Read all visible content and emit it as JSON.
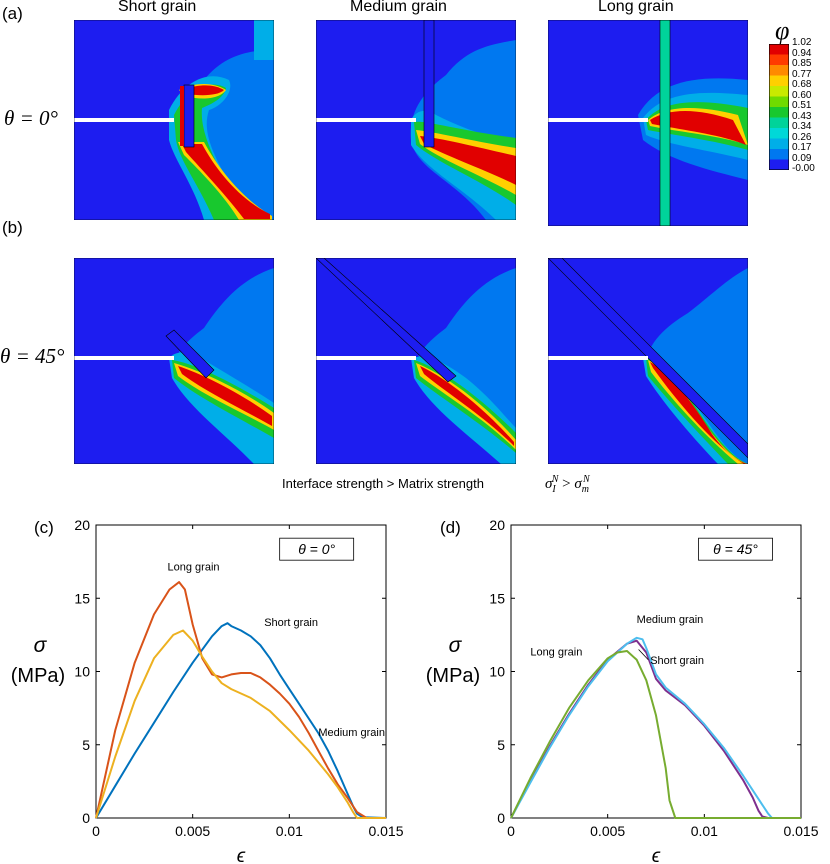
{
  "figure": {
    "panel_a_label": "(a)",
    "panel_b_label": "(b)",
    "panel_c_label": "(c)",
    "panel_d_label": "(d)",
    "column_titles": [
      "Short grain",
      "Medium grain",
      "Long grain"
    ],
    "row_a_angle": "θ = 0°",
    "row_b_angle": "θ = 45°",
    "colorbar": {
      "symbol": "φ",
      "ticks": [
        "1.02",
        "0.94",
        "0.85",
        "0.77",
        "0.68",
        "0.60",
        "0.51",
        "0.43",
        "0.34",
        "0.26",
        "0.17",
        "0.09",
        "-0.00"
      ],
      "colors": [
        "#e10000",
        "#ff3b00",
        "#ff8a00",
        "#ffd000",
        "#c8ea00",
        "#6fdb00",
        "#18c82e",
        "#00d39a",
        "#00d8d8",
        "#00aee8",
        "#0078f0",
        "#1d1df0"
      ]
    },
    "caption_left": "Interface strength > Matrix strength",
    "caption_right_sigma": "σ",
    "caption_right_I": "I",
    "caption_right_N1": "N",
    "caption_right_gt": ">",
    "caption_right_m": "m",
    "caption_right_N2": "N"
  },
  "chart_data": [
    {
      "type": "line",
      "panel": "(c)",
      "legend_box": "θ = 0°",
      "xlabel": "ϵ",
      "ylabel_symbol": "σ",
      "ylabel_unit": "(MPa)",
      "xlim": [
        0,
        0.015
      ],
      "ylim": [
        0,
        20
      ],
      "xticks": [
        0,
        0.005,
        0.01,
        0.015
      ],
      "xtick_labels": [
        "0",
        "0.005",
        "0.01",
        "0.015"
      ],
      "yticks": [
        0,
        5,
        10,
        15,
        20
      ],
      "ytick_labels": [
        "0",
        "5",
        "10",
        "15",
        "20"
      ],
      "annotations": [
        "Long grain",
        "Short grain",
        "Medium grain"
      ],
      "series": [
        {
          "name": "Short grain",
          "color": "#0072bd",
          "x": [
            0,
            0.001,
            0.002,
            0.003,
            0.004,
            0.005,
            0.006,
            0.0065,
            0.0068,
            0.007,
            0.0075,
            0.008,
            0.0085,
            0.009,
            0.0095,
            0.01,
            0.0105,
            0.011,
            0.0115,
            0.012,
            0.0125,
            0.013,
            0.0133,
            0.0135,
            0.0138,
            0.015
          ],
          "y": [
            0,
            2.2,
            4.4,
            6.5,
            8.6,
            10.6,
            12.4,
            13.1,
            13.3,
            13.1,
            12.8,
            12.4,
            11.8,
            10.9,
            9.8,
            8.8,
            7.8,
            6.8,
            5.8,
            4.6,
            3.2,
            1.7,
            0.8,
            0.3,
            0.05,
            0
          ]
        },
        {
          "name": "Long grain",
          "color": "#d95319",
          "x": [
            0,
            0.001,
            0.002,
            0.003,
            0.0038,
            0.0043,
            0.0046,
            0.005,
            0.0055,
            0.006,
            0.0065,
            0.007,
            0.0075,
            0.008,
            0.0085,
            0.009,
            0.0095,
            0.01,
            0.0105,
            0.011,
            0.0115,
            0.012,
            0.0125,
            0.013,
            0.0135,
            0.014,
            0.015
          ],
          "y": [
            0,
            6.0,
            10.6,
            13.9,
            15.6,
            16.1,
            15.6,
            13.2,
            10.9,
            9.8,
            9.6,
            9.8,
            9.9,
            9.9,
            9.6,
            9.1,
            8.5,
            7.8,
            6.9,
            5.8,
            4.6,
            3.4,
            2.3,
            1.4,
            0.4,
            0,
            0
          ]
        },
        {
          "name": "Medium grain",
          "color": "#edb120",
          "x": [
            0,
            0.001,
            0.002,
            0.003,
            0.004,
            0.0045,
            0.005,
            0.0055,
            0.006,
            0.0065,
            0.007,
            0.008,
            0.009,
            0.01,
            0.011,
            0.012,
            0.0125,
            0.013,
            0.0133,
            0.0135,
            0.015
          ],
          "y": [
            0,
            4.2,
            8.0,
            10.9,
            12.5,
            12.8,
            12.1,
            11.0,
            10.0,
            9.2,
            8.8,
            8.2,
            7.3,
            6.0,
            4.6,
            3.0,
            2.1,
            1.1,
            0.4,
            0,
            0
          ]
        }
      ]
    },
    {
      "type": "line",
      "panel": "(d)",
      "legend_box": "θ = 45°",
      "xlabel": "ϵ",
      "ylabel_symbol": "σ",
      "ylabel_unit": "(MPa)",
      "xlim": [
        0,
        0.015
      ],
      "ylim": [
        0,
        20
      ],
      "xticks": [
        0,
        0.005,
        0.01,
        0.015
      ],
      "xtick_labels": [
        "0",
        "0.005",
        "0.01",
        "0.015"
      ],
      "yticks": [
        0,
        5,
        10,
        15,
        20
      ],
      "ytick_labels": [
        "0",
        "5",
        "10",
        "15",
        "20"
      ],
      "annotations": [
        "Medium grain",
        "Long grain",
        "Short grain"
      ],
      "series": [
        {
          "name": "Medium grain",
          "color": "#7e2f8e",
          "x": [
            0,
            0.001,
            0.002,
            0.003,
            0.004,
            0.005,
            0.006,
            0.0065,
            0.007,
            0.0075,
            0.008,
            0.009,
            0.01,
            0.011,
            0.012,
            0.0125,
            0.0128,
            0.013,
            0.0133,
            0.015
          ],
          "y": [
            0,
            2.5,
            4.9,
            7.1,
            9.1,
            10.8,
            11.9,
            12.1,
            11.3,
            9.5,
            8.7,
            7.7,
            6.3,
            4.6,
            2.6,
            1.4,
            0.5,
            0.1,
            0,
            0
          ]
        },
        {
          "name": "Short grain",
          "color": "#4dbeee",
          "x": [
            0,
            0.001,
            0.002,
            0.003,
            0.004,
            0.005,
            0.006,
            0.0065,
            0.0068,
            0.007,
            0.0075,
            0.008,
            0.009,
            0.01,
            0.011,
            0.012,
            0.0125,
            0.013,
            0.0133,
            0.0135,
            0.015
          ],
          "y": [
            0,
            2.4,
            4.8,
            7.0,
            9.0,
            10.7,
            11.9,
            12.3,
            12.2,
            11.6,
            9.8,
            8.9,
            7.8,
            6.4,
            4.8,
            2.9,
            1.9,
            0.9,
            0.3,
            0,
            0
          ]
        },
        {
          "name": "Long grain",
          "color": "#77ac30",
          "x": [
            0,
            0.001,
            0.002,
            0.003,
            0.004,
            0.005,
            0.0055,
            0.006,
            0.0065,
            0.007,
            0.0075,
            0.008,
            0.0082,
            0.0085,
            0.015
          ],
          "y": [
            0,
            2.7,
            5.2,
            7.5,
            9.4,
            10.9,
            11.3,
            11.4,
            10.8,
            9.4,
            7.0,
            3.4,
            1.2,
            0,
            0
          ]
        }
      ]
    }
  ]
}
